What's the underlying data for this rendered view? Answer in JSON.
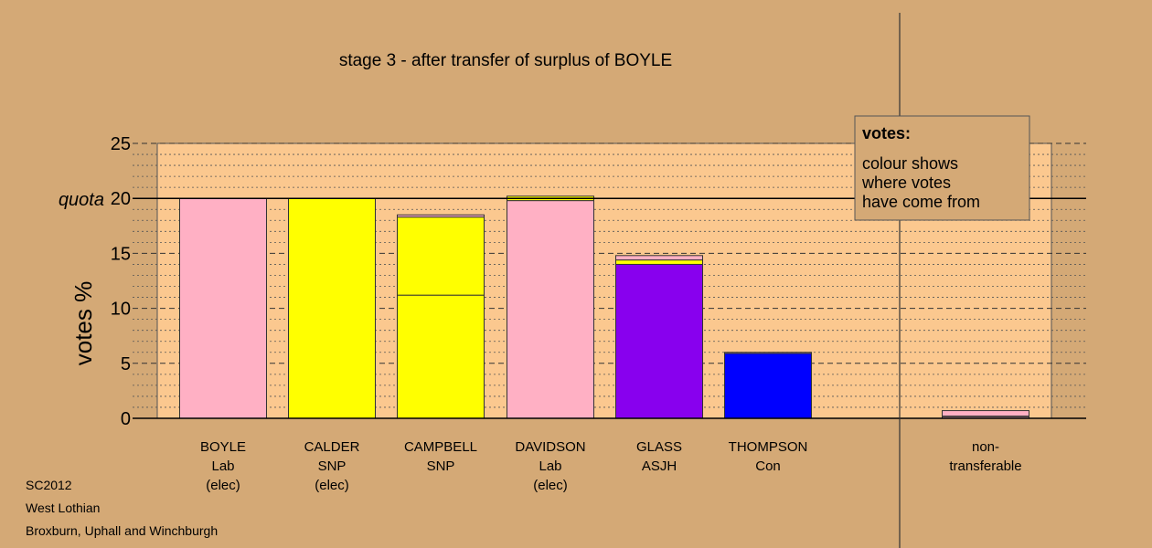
{
  "chart_data": {
    "type": "bar",
    "stacked": true,
    "title": "stage 3 - after transfer of surplus of BOYLE",
    "ylabel": "votes %",
    "ylim": [
      0,
      25
    ],
    "yticks": [
      "0",
      "5",
      "10",
      "15",
      "20",
      "25"
    ],
    "quota_label": "quota",
    "quota": 20,
    "grid": true,
    "categories": [
      {
        "lines": [
          "BOYLE",
          "Lab",
          "(elec)"
        ]
      },
      {
        "lines": [
          "CALDER",
          "SNP",
          "(elec)"
        ]
      },
      {
        "lines": [
          "CAMPBELL",
          "SNP"
        ]
      },
      {
        "lines": [
          "DAVIDSON",
          "Lab",
          "(elec)"
        ]
      },
      {
        "lines": [
          "GLASS",
          "ASJH"
        ]
      },
      {
        "lines": [
          "THOMPSON",
          "Con"
        ]
      },
      {
        "lines": [
          "non-",
          "transferable"
        ]
      }
    ],
    "stacks": [
      [
        {
          "value": 20.0,
          "color": "#ffb0c4"
        }
      ],
      [
        {
          "value": 20.0,
          "color": "#ffff00"
        }
      ],
      [
        {
          "value": 11.2,
          "color": "#ffff00"
        },
        {
          "value": 7.1,
          "color": "#ffff00"
        },
        {
          "value": 0.2,
          "color": "#ffb0c4"
        }
      ],
      [
        {
          "value": 19.8,
          "color": "#ffb0c4"
        },
        {
          "value": 0.4,
          "color": "#ffff00"
        }
      ],
      [
        {
          "value": 14.0,
          "color": "#8800ee"
        },
        {
          "value": 0.4,
          "color": "#ffff00"
        },
        {
          "value": 0.4,
          "color": "#ffb0c4"
        }
      ],
      [
        {
          "value": 5.9,
          "color": "#0000ff"
        },
        {
          "value": 0.1,
          "color": "#ffb0c4"
        }
      ],
      [
        {
          "value": 0.15,
          "color": "#ffb0c4"
        },
        {
          "value": 0.05,
          "color": "#ffff00"
        },
        {
          "value": 0.5,
          "color": "#ffb0c4"
        }
      ]
    ],
    "legend": {
      "title": "votes:",
      "lines": [
        "colour shows",
        "where votes",
        "have come from"
      ],
      "placement": "top-right"
    }
  },
  "footer": {
    "lines": [
      "SC2012",
      "West Lothian",
      "Broxburn, Uphall and Winchburgh"
    ]
  },
  "colors": {
    "background": "#d4a976",
    "plot_background": "#fbc88f",
    "pink": "#ffb0c4",
    "yellow": "#ffff00",
    "purple": "#8800ee",
    "blue": "#0000ff"
  }
}
